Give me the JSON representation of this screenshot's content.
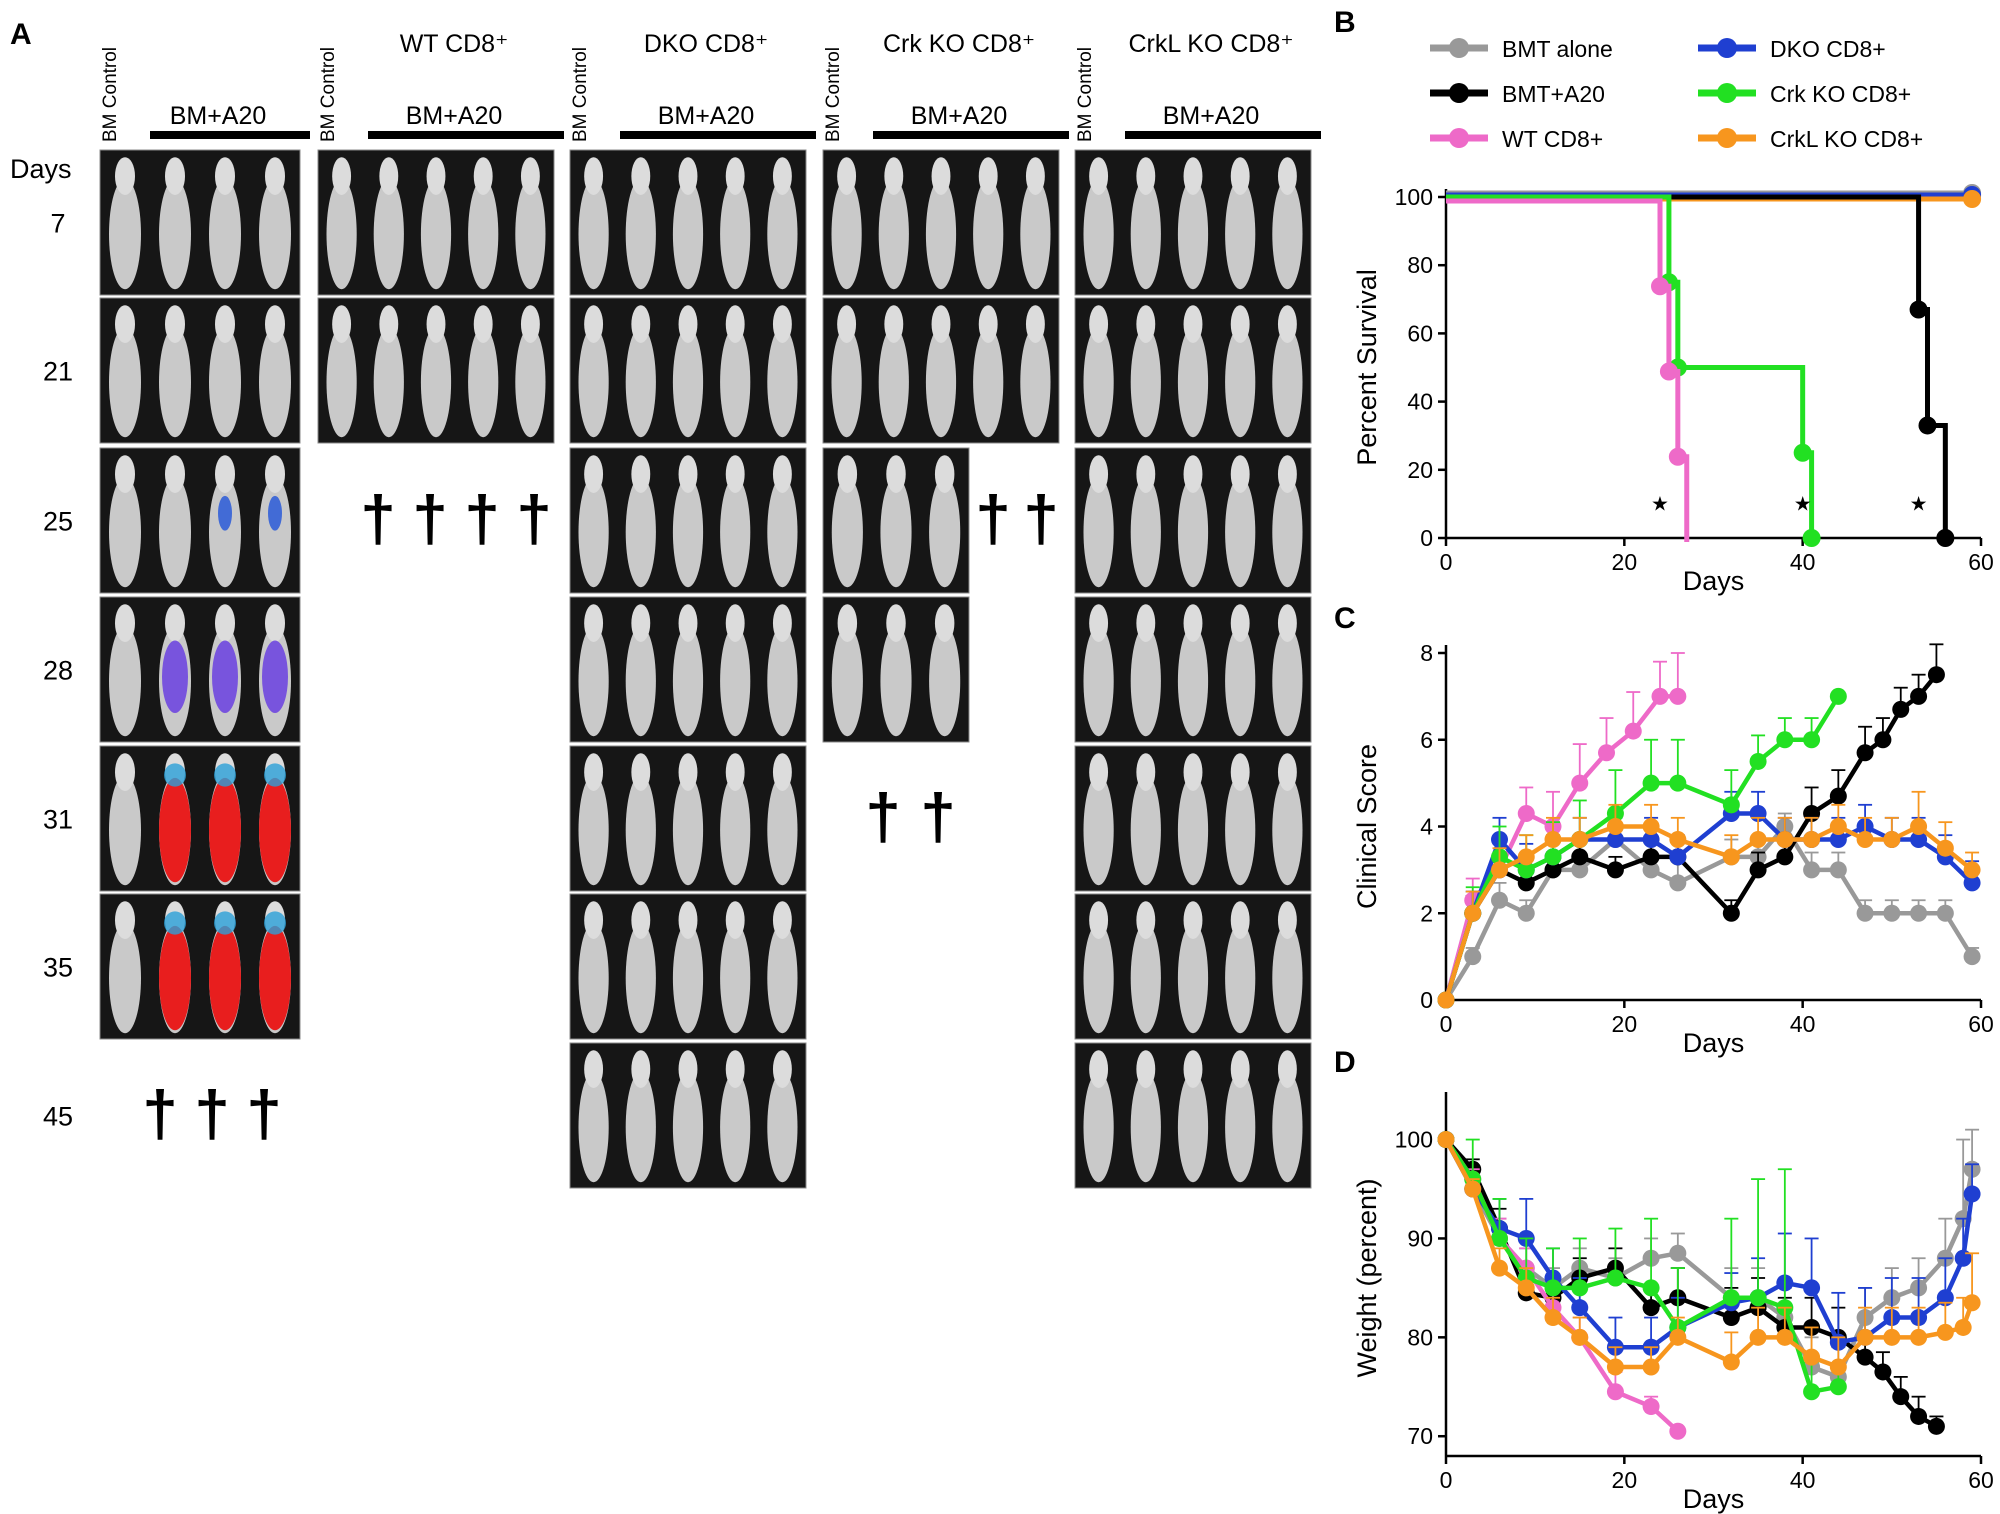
{
  "panel_labels": [
    "A",
    "B",
    "C",
    "D"
  ],
  "imaging_panel": {
    "days_header": "Days",
    "day_labels": [
      "7",
      "21",
      "25",
      "28",
      "31",
      "35",
      "45"
    ],
    "dagger": "†",
    "groups": [
      {
        "control_label": "BM Control",
        "title_lines": [
          "",
          "BM+A20"
        ],
        "image_rows": 6,
        "death_rows": [
          {
            "row": 6,
            "count": 3
          }
        ]
      },
      {
        "control_label": "BM Control",
        "title_lines": [
          "WT CD8⁺",
          "BM+A20"
        ],
        "image_rows": 2,
        "death_rows": [
          {
            "row": 2,
            "count": 4
          }
        ]
      },
      {
        "control_label": "BM Control",
        "title_lines": [
          "DKO CD8⁺",
          "BM+A20"
        ],
        "image_rows": 7,
        "death_rows": []
      },
      {
        "control_label": "BM Control",
        "title_lines": [
          "Crk KO CD8⁺",
          "BM+A20"
        ],
        "image_rows": 4,
        "death_rows": [
          {
            "row": 2,
            "count": 2
          },
          {
            "row": 4,
            "count": 2
          }
        ]
      },
      {
        "control_label": "BM Control",
        "title_lines": [
          "CrkL KO CD8⁺",
          "BM+A20"
        ],
        "image_rows": 7,
        "death_rows": []
      }
    ],
    "tumor_signal": [
      {
        "row": 2,
        "mouse": 3,
        "level": "low"
      },
      {
        "row": 2,
        "mouse": 4,
        "level": "low"
      },
      {
        "row": 3,
        "mouse": 2,
        "level": "medium"
      },
      {
        "row": 3,
        "mouse": 3,
        "level": "medium"
      },
      {
        "row": 3,
        "mouse": 4,
        "level": "medium"
      },
      {
        "row": 4,
        "mouse": 2,
        "level": "high"
      },
      {
        "row": 4,
        "mouse": 3,
        "level": "high"
      },
      {
        "row": 4,
        "mouse": 4,
        "level": "high"
      },
      {
        "row": 5,
        "mouse": 2,
        "level": "high"
      },
      {
        "row": 5,
        "mouse": 3,
        "level": "high"
      },
      {
        "row": 5,
        "mouse": 4,
        "level": "high"
      }
    ]
  },
  "legend": [
    {
      "name": "BMT alone",
      "color": "#999999"
    },
    {
      "name": "BMT+A20",
      "color": "#000000"
    },
    {
      "name": "WT CD8+",
      "color": "#ee6ac8"
    },
    {
      "name": "DKO CD8+",
      "color": "#1f3fd1"
    },
    {
      "name": "Crk KO CD8+",
      "color": "#22e022"
    },
    {
      "name": "CrkL KO CD8+",
      "color": "#f7961e"
    }
  ],
  "chart_data": [
    {
      "panel": "B",
      "type": "line",
      "step": true,
      "xlabel": "Days",
      "ylabel": "Percent Survival",
      "xlim": [
        0,
        60
      ],
      "ylim": [
        0,
        100
      ],
      "xticks": [
        0,
        20,
        40,
        60
      ],
      "yticks": [
        0,
        20,
        40,
        60,
        80,
        100
      ],
      "significance_marker": "★",
      "significance_x": [
        24,
        40,
        53
      ],
      "series": [
        {
          "name": "BMT alone",
          "color": "#999999",
          "points": [
            [
              0,
              100
            ],
            [
              59,
              100
            ]
          ],
          "markers": [
            [
              59,
              100
            ]
          ],
          "offset": 2
        },
        {
          "name": "DKO CD8+",
          "color": "#1f3fd1",
          "points": [
            [
              0,
              100
            ],
            [
              59,
              100
            ]
          ],
          "markers": [
            [
              59,
              100
            ]
          ],
          "offset": 1
        },
        {
          "name": "CrkL KO CD8+",
          "color": "#f7961e",
          "points": [
            [
              0,
              100
            ],
            [
              59,
              100
            ]
          ],
          "markers": [
            [
              59,
              100
            ]
          ],
          "offset": -1
        },
        {
          "name": "BMT+A20",
          "color": "#000000",
          "points": [
            [
              0,
              100
            ],
            [
              53,
              100
            ],
            [
              53,
              67
            ],
            [
              54,
              67
            ],
            [
              54,
              33
            ],
            [
              56,
              33
            ],
            [
              56,
              0
            ]
          ],
          "markers": [
            [
              53,
              67
            ],
            [
              54,
              33
            ],
            [
              56,
              0
            ]
          ],
          "offset": 0
        },
        {
          "name": "Crk KO CD8+",
          "color": "#22e022",
          "points": [
            [
              0,
              100
            ],
            [
              25,
              100
            ],
            [
              25,
              75
            ],
            [
              26,
              75
            ],
            [
              26,
              50
            ],
            [
              40,
              50
            ],
            [
              40,
              25
            ],
            [
              41,
              25
            ],
            [
              41,
              0
            ]
          ],
          "markers": [
            [
              25,
              75
            ],
            [
              26,
              50
            ],
            [
              40,
              25
            ],
            [
              41,
              0
            ]
          ],
          "offset": 0
        },
        {
          "name": "WT CD8+",
          "color": "#ee6ac8",
          "points": [
            [
              0,
              100
            ],
            [
              24,
              100
            ],
            [
              24,
              75
            ],
            [
              25,
              75
            ],
            [
              25,
              50
            ],
            [
              26,
              50
            ],
            [
              26,
              25
            ],
            [
              27,
              25
            ],
            [
              27,
              0
            ]
          ],
          "markers": [
            [
              24,
              75
            ],
            [
              25,
              50
            ],
            [
              26,
              25
            ]
          ],
          "offset": -2
        }
      ]
    },
    {
      "panel": "C",
      "type": "line",
      "xlabel": "Days",
      "ylabel": "Clinical Score",
      "xlim": [
        0,
        60
      ],
      "ylim": [
        0,
        8
      ],
      "xticks": [
        0,
        20,
        40,
        60
      ],
      "yticks": [
        0,
        2,
        4,
        6,
        8
      ],
      "series": [
        {
          "name": "BMT alone",
          "color": "#999999",
          "x": [
            0,
            3,
            6,
            9,
            12,
            15,
            19,
            23,
            26,
            32,
            35,
            38,
            41,
            44,
            47,
            50,
            53,
            56,
            59
          ],
          "y": [
            0,
            1,
            2.3,
            2,
            3,
            3,
            3.7,
            3,
            2.7,
            3.3,
            3.3,
            4,
            3,
            3,
            2,
            2,
            2,
            2,
            1
          ],
          "err": [
            0,
            0.2,
            0.4,
            0.3,
            0.3,
            0.3,
            0.3,
            0.4,
            0.5,
            0.4,
            0.4,
            0.3,
            0.4,
            0.4,
            0.3,
            0.3,
            0.3,
            0.3,
            0.2
          ]
        },
        {
          "name": "BMT+A20",
          "color": "#000000",
          "x": [
            0,
            3,
            6,
            9,
            12,
            15,
            19,
            23,
            26,
            32,
            35,
            38,
            41,
            44,
            47,
            49,
            51,
            53,
            55
          ],
          "y": [
            0,
            2,
            3,
            2.7,
            3,
            3.3,
            3,
            3.3,
            3.3,
            2,
            3,
            3.3,
            4.3,
            4.7,
            5.7,
            6,
            6.7,
            7,
            7.5
          ],
          "err": [
            0,
            0.4,
            0.4,
            0.4,
            0.4,
            0.4,
            0.3,
            0.4,
            0.4,
            0.3,
            0.4,
            0.5,
            0.6,
            0.6,
            0.6,
            0.5,
            0.5,
            0.5,
            0.7
          ]
        },
        {
          "name": "WT CD8+",
          "color": "#ee6ac8",
          "x": [
            0,
            3,
            6,
            9,
            12,
            15,
            18,
            21,
            24,
            26
          ],
          "y": [
            0,
            2.3,
            3,
            4.3,
            4,
            5,
            5.7,
            6.2,
            7,
            7
          ],
          "err": [
            0,
            0.5,
            0.6,
            0.6,
            0.8,
            0.9,
            0.8,
            0.9,
            0.8,
            1
          ]
        },
        {
          "name": "DKO CD8+",
          "color": "#1f3fd1",
          "x": [
            0,
            3,
            6,
            9,
            12,
            15,
            19,
            23,
            26,
            32,
            35,
            38,
            41,
            44,
            47,
            50,
            53,
            56,
            59
          ],
          "y": [
            0,
            2,
            3.7,
            3,
            3.3,
            3.7,
            3.7,
            3.7,
            3.3,
            4.3,
            4.3,
            3.7,
            3.7,
            3.7,
            4,
            3.7,
            3.7,
            3.3,
            2.7
          ],
          "err": [
            0,
            0.5,
            0.5,
            0.6,
            0.5,
            0.5,
            0.5,
            0.5,
            0.5,
            0.5,
            0.5,
            0.5,
            0.5,
            0.5,
            0.5,
            0.5,
            0.5,
            0.5,
            0.5
          ]
        },
        {
          "name": "Crk KO CD8+",
          "color": "#22e022",
          "x": [
            0,
            3,
            6,
            9,
            12,
            15,
            19,
            23,
            26,
            32,
            35,
            38,
            41,
            44
          ],
          "y": [
            0,
            2,
            3.3,
            3,
            3.3,
            3.7,
            4.3,
            5,
            5,
            4.5,
            5.5,
            6,
            6,
            7
          ],
          "err": [
            0,
            0.6,
            0.7,
            0.8,
            0.8,
            0.9,
            1,
            1,
            1,
            0.8,
            0.6,
            0.5,
            0.5,
            0
          ]
        },
        {
          "name": "CrkL KO CD8+",
          "color": "#f7961e",
          "x": [
            0,
            3,
            6,
            9,
            12,
            15,
            19,
            23,
            26,
            32,
            35,
            38,
            41,
            44,
            47,
            50,
            53,
            56,
            59
          ],
          "y": [
            0,
            2,
            3,
            3.3,
            3.7,
            3.7,
            4,
            4,
            3.7,
            3.3,
            3.7,
            3.7,
            3.7,
            4,
            3.7,
            3.7,
            4,
            3.5,
            3
          ],
          "err": [
            0,
            0.5,
            0.5,
            0.5,
            0.5,
            0.5,
            0.5,
            0.5,
            0.5,
            0.5,
            0.5,
            0.5,
            0.5,
            0.5,
            0.5,
            0.5,
            0.8,
            0.6,
            0.4
          ]
        }
      ]
    },
    {
      "panel": "D",
      "type": "line",
      "xlabel": "Days",
      "ylabel": "Weight (percent)",
      "xlim": [
        0,
        60
      ],
      "ylim": [
        68,
        104
      ],
      "xticks": [
        0,
        20,
        40,
        60
      ],
      "yticks": [
        70,
        80,
        90,
        100
      ],
      "series": [
        {
          "name": "BMT alone",
          "color": "#999999",
          "x": [
            0,
            3,
            6,
            9,
            12,
            15,
            19,
            23,
            26,
            32,
            35,
            38,
            41,
            44,
            47,
            50,
            53,
            56,
            58,
            59
          ],
          "y": [
            100,
            95,
            90,
            87,
            85,
            87,
            86,
            88,
            88.5,
            84,
            84,
            82,
            77,
            76,
            82,
            84,
            85,
            88,
            92,
            97
          ],
          "err": [
            0,
            1,
            2,
            2,
            2,
            2,
            2,
            2,
            2,
            3,
            3,
            3,
            3,
            3,
            3,
            3,
            3,
            4,
            8,
            4
          ]
        },
        {
          "name": "BMT+A20",
          "color": "#000000",
          "x": [
            0,
            3,
            6,
            9,
            12,
            15,
            19,
            23,
            26,
            32,
            35,
            38,
            41,
            44,
            47,
            49,
            51,
            53,
            55
          ],
          "y": [
            100,
            97,
            91,
            84.5,
            84,
            86,
            87,
            83,
            84,
            82,
            83,
            81,
            81,
            80,
            78,
            76.5,
            74,
            72,
            71
          ],
          "err": [
            0,
            1,
            2,
            2,
            2,
            2,
            2,
            2,
            3,
            3,
            3,
            3,
            3,
            3,
            2,
            2,
            2,
            2,
            1
          ]
        },
        {
          "name": "WT CD8+",
          "color": "#ee6ac8",
          "x": [
            0,
            3,
            6,
            9,
            12,
            15,
            19,
            23,
            26
          ],
          "y": [
            100,
            96,
            90,
            87,
            83,
            80,
            74.5,
            73,
            70.5
          ],
          "err": [
            0,
            1,
            2,
            2,
            2,
            2,
            2,
            1,
            0
          ]
        },
        {
          "name": "DKO CD8+",
          "color": "#1f3fd1",
          "x": [
            0,
            3,
            6,
            9,
            12,
            15,
            19,
            23,
            26,
            32,
            35,
            38,
            41,
            44,
            47,
            50,
            53,
            56,
            58,
            59
          ],
          "y": [
            100,
            95,
            91,
            90,
            86,
            83,
            79,
            79,
            81,
            83.5,
            84,
            85.5,
            85,
            79.5,
            80,
            82,
            82,
            84,
            88,
            94.5
          ],
          "err": [
            0,
            1,
            3,
            4,
            3,
            3,
            3,
            3,
            3,
            3,
            4,
            5,
            5,
            5,
            5,
            4,
            4,
            4,
            4,
            3
          ]
        },
        {
          "name": "Crk KO CD8+",
          "color": "#22e022",
          "x": [
            0,
            3,
            6,
            9,
            12,
            15,
            19,
            23,
            26,
            32,
            35,
            38,
            41,
            44
          ],
          "y": [
            100,
            96,
            90,
            86,
            85,
            85,
            86,
            85,
            81,
            84,
            84,
            83,
            74.5,
            75
          ],
          "err": [
            0,
            4,
            4,
            4,
            4,
            5,
            5,
            7,
            6,
            8,
            12,
            14,
            3,
            2
          ]
        },
        {
          "name": "CrkL KO CD8+",
          "color": "#f7961e",
          "x": [
            0,
            3,
            6,
            9,
            12,
            15,
            19,
            23,
            26,
            32,
            35,
            38,
            41,
            44,
            47,
            50,
            53,
            56,
            58,
            59
          ],
          "y": [
            100,
            95,
            87,
            85,
            82,
            80,
            77,
            77,
            80,
            77.5,
            80,
            80,
            78,
            77,
            80,
            80,
            80,
            80.5,
            81,
            83.5
          ],
          "err": [
            0,
            1,
            2,
            2,
            2,
            2,
            2,
            2,
            2,
            3,
            3,
            3,
            3,
            3,
            3,
            3,
            3,
            3,
            3,
            5
          ]
        }
      ]
    }
  ]
}
